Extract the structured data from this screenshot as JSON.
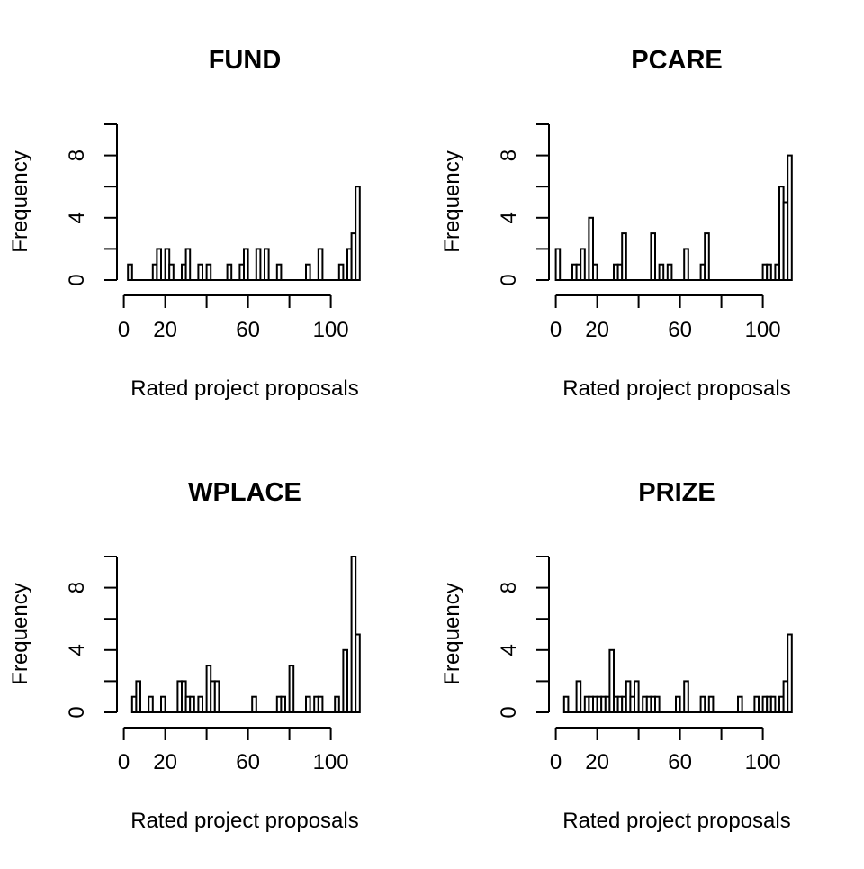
{
  "chart_data": [
    {
      "type": "bar",
      "title": "FUND",
      "xlabel": "Rated project proposals",
      "ylabel": "Frequency",
      "xlim": [
        0,
        115
      ],
      "ylim": [
        0,
        10
      ],
      "xticks": [
        0,
        20,
        60,
        100
      ],
      "yticks": [
        0,
        4,
        8
      ],
      "bin_width": 2,
      "bins": [
        [
          2,
          1
        ],
        [
          14,
          1
        ],
        [
          16,
          2
        ],
        [
          20,
          2
        ],
        [
          22,
          1
        ],
        [
          28,
          1
        ],
        [
          30,
          2
        ],
        [
          36,
          1
        ],
        [
          40,
          1
        ],
        [
          50,
          1
        ],
        [
          56,
          1
        ],
        [
          58,
          2
        ],
        [
          64,
          2
        ],
        [
          68,
          2
        ],
        [
          74,
          1
        ],
        [
          88,
          1
        ],
        [
          94,
          2
        ],
        [
          104,
          1
        ],
        [
          108,
          2
        ],
        [
          110,
          3
        ],
        [
          112,
          6
        ]
      ]
    },
    {
      "type": "bar",
      "title": "PCARE",
      "xlabel": "Rated project proposals",
      "ylabel": "Frequency",
      "xlim": [
        0,
        115
      ],
      "ylim": [
        0,
        10
      ],
      "xticks": [
        0,
        20,
        60,
        100
      ],
      "yticks": [
        0,
        4,
        8
      ],
      "bin_width": 2,
      "bins": [
        [
          0,
          2
        ],
        [
          8,
          1
        ],
        [
          10,
          1
        ],
        [
          12,
          2
        ],
        [
          16,
          4
        ],
        [
          18,
          1
        ],
        [
          28,
          1
        ],
        [
          30,
          1
        ],
        [
          32,
          3
        ],
        [
          46,
          3
        ],
        [
          50,
          1
        ],
        [
          54,
          1
        ],
        [
          62,
          2
        ],
        [
          70,
          1
        ],
        [
          72,
          3
        ],
        [
          100,
          1
        ],
        [
          102,
          1
        ],
        [
          106,
          1
        ],
        [
          108,
          6
        ],
        [
          110,
          5
        ],
        [
          112,
          8
        ]
      ]
    },
    {
      "type": "bar",
      "title": "WPLACE",
      "xlabel": "Rated project proposals",
      "ylabel": "Frequency",
      "xlim": [
        0,
        115
      ],
      "ylim": [
        0,
        10
      ],
      "xticks": [
        0,
        20,
        60,
        100
      ],
      "yticks": [
        0,
        4,
        8
      ],
      "bin_width": 2,
      "bins": [
        [
          4,
          1
        ],
        [
          6,
          2
        ],
        [
          12,
          1
        ],
        [
          18,
          1
        ],
        [
          26,
          2
        ],
        [
          28,
          2
        ],
        [
          30,
          1
        ],
        [
          32,
          1
        ],
        [
          36,
          1
        ],
        [
          40,
          3
        ],
        [
          42,
          2
        ],
        [
          44,
          2
        ],
        [
          62,
          1
        ],
        [
          74,
          1
        ],
        [
          76,
          1
        ],
        [
          80,
          3
        ],
        [
          88,
          1
        ],
        [
          92,
          1
        ],
        [
          94,
          1
        ],
        [
          102,
          1
        ],
        [
          106,
          4
        ],
        [
          110,
          10
        ],
        [
          112,
          5
        ]
      ]
    },
    {
      "type": "bar",
      "title": "PRIZE",
      "xlabel": "Rated project proposals",
      "ylabel": "Frequency",
      "xlim": [
        0,
        115
      ],
      "ylim": [
        0,
        10
      ],
      "xticks": [
        0,
        20,
        60,
        100
      ],
      "yticks": [
        0,
        4,
        8
      ],
      "bin_width": 2,
      "bins": [
        [
          4,
          1
        ],
        [
          10,
          2
        ],
        [
          14,
          1
        ],
        [
          16,
          1
        ],
        [
          18,
          1
        ],
        [
          20,
          1
        ],
        [
          22,
          1
        ],
        [
          24,
          1
        ],
        [
          26,
          4
        ],
        [
          28,
          1
        ],
        [
          30,
          1
        ],
        [
          32,
          1
        ],
        [
          34,
          2
        ],
        [
          36,
          1
        ],
        [
          38,
          2
        ],
        [
          42,
          1
        ],
        [
          44,
          1
        ],
        [
          46,
          1
        ],
        [
          48,
          1
        ],
        [
          58,
          1
        ],
        [
          62,
          2
        ],
        [
          70,
          1
        ],
        [
          74,
          1
        ],
        [
          88,
          1
        ],
        [
          96,
          1
        ],
        [
          100,
          1
        ],
        [
          102,
          1
        ],
        [
          104,
          1
        ],
        [
          108,
          1
        ],
        [
          110,
          2
        ],
        [
          112,
          5
        ]
      ]
    }
  ]
}
